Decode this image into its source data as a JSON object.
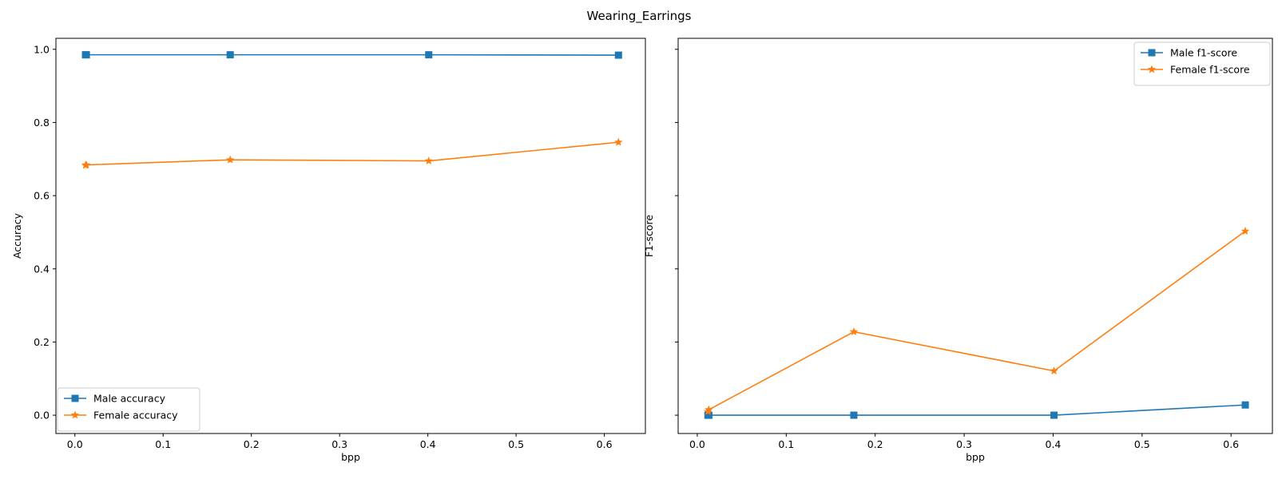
{
  "figure": {
    "title": "Wearing_Earrings"
  },
  "chart_data": [
    {
      "type": "line",
      "title": "",
      "xlabel": "bpp",
      "ylabel": "Accuracy",
      "xlim": [
        -0.0215,
        0.6465
      ],
      "ylim": [
        -0.05,
        1.03
      ],
      "xticks": [
        0.0,
        0.1,
        0.2,
        0.3,
        0.4,
        0.5,
        0.6
      ],
      "yticks": [
        0.0,
        0.2,
        0.4,
        0.6,
        0.8,
        1.0
      ],
      "xticklabels": [
        "0.0",
        "0.1",
        "0.2",
        "0.3",
        "0.4",
        "0.5",
        "0.6"
      ],
      "yticklabels": [
        "0.0",
        "0.2",
        "0.4",
        "0.6",
        "0.8",
        "1.0"
      ],
      "legend_position": "lower-left",
      "grid": false,
      "series": [
        {
          "name": "Male accuracy",
          "color": "#1f77b4",
          "marker": "square",
          "x": [
            0.012,
            0.013,
            0.176,
            0.401,
            0.616
          ],
          "y": [
            0.985,
            0.985,
            0.985,
            0.985,
            0.984
          ]
        },
        {
          "name": "Female accuracy",
          "color": "#ff7f0e",
          "marker": "star",
          "x": [
            0.012,
            0.013,
            0.176,
            0.401,
            0.616
          ],
          "y": [
            0.683,
            0.684,
            0.698,
            0.695,
            0.746
          ]
        }
      ]
    },
    {
      "type": "line",
      "title": "",
      "xlabel": "bpp",
      "ylabel": "F1-score",
      "xlim": [
        -0.0215,
        0.6465
      ],
      "ylim": [
        -0.05,
        1.03
      ],
      "xticks": [
        0.0,
        0.1,
        0.2,
        0.3,
        0.4,
        0.5,
        0.6
      ],
      "yticks": [
        0.0,
        0.2,
        0.4,
        0.6,
        0.8,
        1.0
      ],
      "xticklabels": [
        "0.0",
        "0.1",
        "0.2",
        "0.3",
        "0.4",
        "0.5",
        "0.6"
      ],
      "yticklabels": [],
      "legend_position": "upper-right",
      "grid": false,
      "series": [
        {
          "name": "Male f1-score",
          "color": "#1f77b4",
          "marker": "square",
          "x": [
            0.012,
            0.013,
            0.176,
            0.401,
            0.616
          ],
          "y": [
            0.0,
            0.0,
            0.0,
            0.0,
            0.028
          ]
        },
        {
          "name": "Female f1-score",
          "color": "#ff7f0e",
          "marker": "star",
          "x": [
            0.012,
            0.013,
            0.176,
            0.401,
            0.616
          ],
          "y": [
            0.01,
            0.015,
            0.228,
            0.121,
            0.503
          ]
        }
      ]
    }
  ]
}
